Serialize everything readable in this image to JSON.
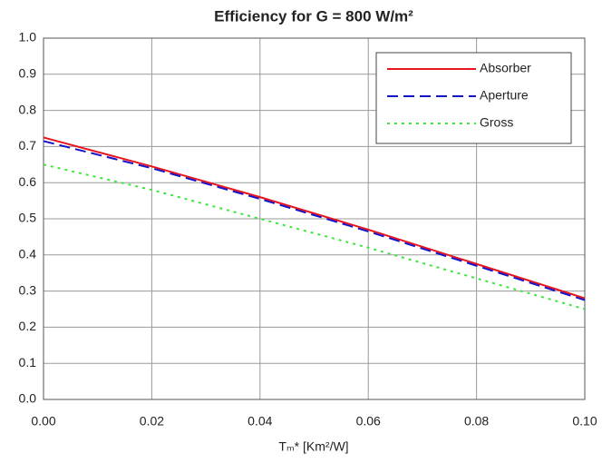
{
  "chart_data": {
    "type": "line",
    "title": "Efficiency for G = 800 W/m²",
    "x_label": "Tₘ* [Km²/W]",
    "x": [
      0,
      0.02,
      0.04,
      0.06,
      0.08,
      0.1
    ],
    "series": [
      {
        "name": "Absorber",
        "color": "#e8141e",
        "dash": "solid",
        "values": [
          0.725,
          0.645,
          0.56,
          0.47,
          0.375,
          0.28
        ]
      },
      {
        "name": "Aperture",
        "color": "#1414c8",
        "dash": "dashed",
        "values": [
          0.715,
          0.64,
          0.555,
          0.465,
          0.37,
          0.275
        ]
      },
      {
        "name": "Gross",
        "color": "#3ce63c",
        "dash": "dotted",
        "values": [
          0.65,
          0.58,
          0.5,
          0.42,
          0.335,
          0.25
        ]
      }
    ],
    "xlim": [
      0,
      0.1
    ],
    "xticks": [
      {
        "value": 0,
        "label": "0.00"
      },
      {
        "value": 0.02,
        "label": "0.02"
      },
      {
        "value": 0.04,
        "label": "0.04"
      },
      {
        "value": 0.06,
        "label": "0.06"
      },
      {
        "value": 0.08,
        "label": "0.08"
      },
      {
        "value": 0.1,
        "label": "0.10"
      }
    ],
    "ylim": [
      0,
      1
    ],
    "yticks": [
      {
        "value": 0,
        "label": "0.0"
      },
      0.1,
      0.2,
      0.3,
      0.4,
      0.5,
      0.6,
      0.7,
      0.8,
      0.9,
      {
        "value": 1,
        "label": "1.0"
      }
    ],
    "grid": true,
    "legend": "upper right"
  }
}
